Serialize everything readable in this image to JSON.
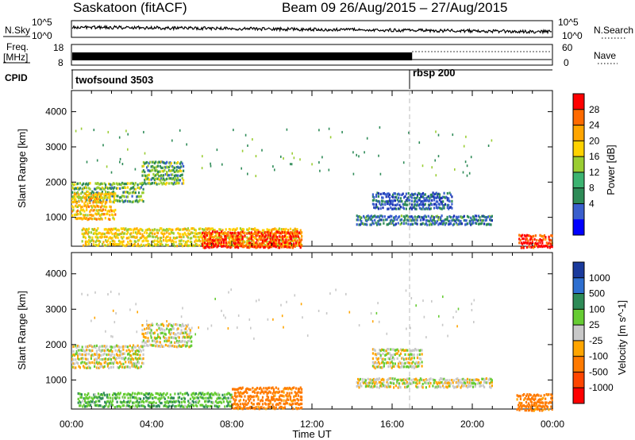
{
  "header": {
    "station": "Saskatoon (fitACF)",
    "beam_dates": "Beam 09 26/Aug/2015 – 27/Aug/2015"
  },
  "strip_labels": {
    "nsky": "N.Sky",
    "nsky_ticks": [
      "10^5",
      "10^0"
    ],
    "freq_label_1": "Freq.",
    "freq_label_2": "[MHz]",
    "freq_ticks": [
      "18",
      "8"
    ],
    "cpid": "CPID",
    "nsearch": "N.Search",
    "nsearch_ticks": [
      "10^5",
      "10^0"
    ],
    "nave": "Nave",
    "nave_ticks": [
      "60",
      "0"
    ],
    "program_1": "twofsound 3503",
    "program_2": "rbsp 200"
  },
  "chart_data": [
    {
      "type": "heatmap",
      "panel": "power",
      "ylabel": "Slant Range [km]",
      "yticks": [
        1000,
        2000,
        3000,
        4000
      ],
      "ylim": [
        180,
        4600
      ],
      "xlim": [
        0,
        24
      ],
      "colorbar": {
        "label": "Power [dB]",
        "ticks": [
          "28",
          "24",
          "20",
          "16",
          "12",
          "8",
          "4"
        ],
        "colors": [
          "#ff0000",
          "#ff6a00",
          "#ffa500",
          "#ffd200",
          "#9acd32",
          "#3cb371",
          "#2e8b57",
          "#3a5fcd",
          "#0000ff"
        ]
      },
      "features": [
        {
          "t0": 0.0,
          "t1": 3.6,
          "r0": 1500,
          "r1": 2100,
          "value_db": 12
        },
        {
          "t0": 0.0,
          "t1": 2.2,
          "r0": 1000,
          "r1": 1800,
          "value_db": 20
        },
        {
          "t0": 3.5,
          "t1": 5.6,
          "r0": 2000,
          "r1": 2700,
          "value_db": 12
        },
        {
          "t0": 0.5,
          "t1": 11.5,
          "r0": 250,
          "r1": 800,
          "value_db": 18
        },
        {
          "t0": 6.5,
          "t1": 11.5,
          "r0": 200,
          "r1": 700,
          "value_db": 28
        },
        {
          "t0": 14.2,
          "t1": 21.0,
          "r0": 850,
          "r1": 1150,
          "value_db": 8
        },
        {
          "t0": 15.0,
          "t1": 19.0,
          "r0": 1300,
          "r1": 1800,
          "value_db": 6
        },
        {
          "t0": 22.3,
          "t1": 24.0,
          "r0": 200,
          "r1": 600,
          "value_db": 28
        }
      ]
    },
    {
      "type": "heatmap",
      "panel": "velocity",
      "ylabel": "Slant Range [km]",
      "xlabel": "Time UT",
      "yticks": [
        1000,
        2000,
        3000,
        4000
      ],
      "ylim": [
        180,
        4600
      ],
      "xlim": [
        0,
        24
      ],
      "xticks": [
        "00:00",
        "04:00",
        "08:00",
        "12:00",
        "16:00",
        "20:00",
        "00:00"
      ],
      "colorbar": {
        "label": "Velocity [m s^-1]",
        "ticks": [
          "1000",
          "500",
          "100",
          "25",
          "-25",
          "-100",
          "-500",
          "-1000"
        ],
        "colors": [
          "#1a3a9c",
          "#2e6fd0",
          "#2e8b57",
          "#66cc33",
          "#c8c8c8",
          "#ffa500",
          "#ff7a00",
          "#ff4500",
          "#ff0000"
        ]
      },
      "features": [
        {
          "t0": 0.0,
          "t1": 3.6,
          "r0": 1400,
          "r1": 2100,
          "value_ms": 0
        },
        {
          "t0": 3.5,
          "t1": 6.0,
          "r0": 2000,
          "r1": 2700,
          "value_ms": 0
        },
        {
          "t0": 0.3,
          "t1": 8.0,
          "r0": 300,
          "r1": 750,
          "value_ms": 80
        },
        {
          "t0": 8.0,
          "t1": 11.5,
          "r0": 250,
          "r1": 900,
          "value_ms": -150
        },
        {
          "t0": 14.2,
          "t1": 21.0,
          "r0": 850,
          "r1": 1150,
          "value_ms": 0
        },
        {
          "t0": 15.0,
          "t1": 17.5,
          "r0": 1400,
          "r1": 2000,
          "value_ms": 0
        },
        {
          "t0": 22.2,
          "t1": 24.0,
          "r0": 200,
          "r1": 700,
          "value_ms": -150
        }
      ]
    }
  ]
}
